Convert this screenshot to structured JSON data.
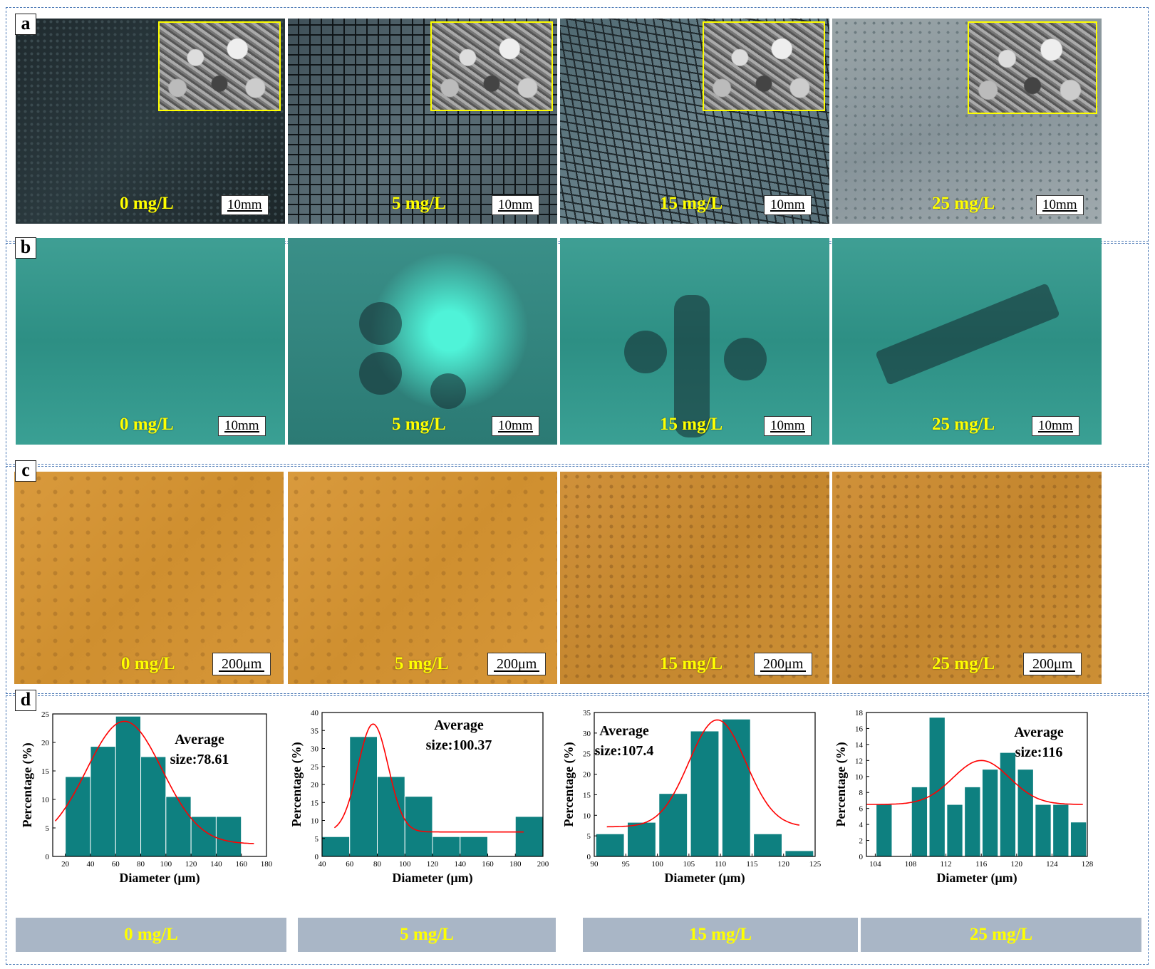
{
  "panels": {
    "a": "a",
    "b": "b",
    "c": "c",
    "d": "d"
  },
  "row_a": [
    {
      "label": "0 mg/L",
      "scale": "10mm"
    },
    {
      "label": "5 mg/L",
      "scale": "10mm"
    },
    {
      "label": "15 mg/L",
      "scale": "10mm"
    },
    {
      "label": "25 mg/L",
      "scale": "10mm"
    }
  ],
  "row_b": [
    {
      "label": "0 mg/L",
      "scale": "10mm"
    },
    {
      "label": "5 mg/L",
      "scale": "10mm"
    },
    {
      "label": "15 mg/L",
      "scale": "10mm"
    },
    {
      "label": "25 mg/L",
      "scale": "10mm"
    }
  ],
  "row_c": [
    {
      "label": "0 mg/L",
      "scale": "200μm"
    },
    {
      "label": "5 mg/L",
      "scale": "200μm"
    },
    {
      "label": "15 mg/L",
      "scale": "200μm"
    },
    {
      "label": "25 mg/L",
      "scale": "200μm"
    }
  ],
  "footer": [
    "0 mg/L",
    "5 mg/L",
    "15 mg/L",
    "25 mg/L"
  ],
  "colors": {
    "bar": "#0e8080",
    "fit": "#ff0000",
    "label": "#ffff00",
    "footer_bg": "#a9b6c6"
  },
  "chart_data": [
    {
      "type": "bar",
      "xlabel": "Diameter (μm)",
      "ylabel": "Percentage (%)",
      "annotation": [
        "Average",
        "size:78.61"
      ],
      "xlim": [
        10,
        180
      ],
      "ylim": [
        0,
        25
      ],
      "xticks": [
        20,
        40,
        60,
        80,
        100,
        120,
        140,
        160,
        180
      ],
      "yticks": [
        0,
        5,
        10,
        15,
        20,
        25
      ],
      "bar_width": 20,
      "x": [
        30,
        50,
        70,
        90,
        110,
        130,
        150
      ],
      "values": [
        14.0,
        19.3,
        24.6,
        17.5,
        10.5,
        7.0,
        7.0
      ],
      "fit": {
        "type": "gaussian",
        "center": 67,
        "sigma": 30,
        "amplitude": 21.5,
        "offset": 2.2,
        "x_range": [
          12,
          170
        ]
      }
    },
    {
      "type": "bar",
      "xlabel": "Diameter (μm)",
      "ylabel": "Percentage (%)",
      "annotation": [
        "Average",
        "size:100.37"
      ],
      "xlim": [
        40,
        200
      ],
      "ylim": [
        0,
        40
      ],
      "xticks": [
        40,
        60,
        80,
        100,
        120,
        140,
        160,
        180,
        200
      ],
      "yticks": [
        0,
        5,
        10,
        15,
        20,
        25,
        30,
        35,
        40
      ],
      "bar_width": 20,
      "x": [
        50,
        70,
        90,
        110,
        130,
        150,
        190
      ],
      "values": [
        5.5,
        33.3,
        22.2,
        16.7,
        5.5,
        5.5,
        11.1
      ],
      "fit": {
        "type": "gaussian",
        "center": 77,
        "sigma": 11,
        "amplitude": 30,
        "offset": 6.8,
        "x_range": [
          49,
          186
        ]
      }
    },
    {
      "type": "bar",
      "xlabel": "Diameter (μm)",
      "ylabel": "Percentage (%)",
      "annotation": [
        "Average",
        "size:107.4"
      ],
      "xlim": [
        90,
        125
      ],
      "ylim": [
        0,
        35
      ],
      "xticks": [
        90,
        95,
        100,
        105,
        110,
        115,
        120,
        125
      ],
      "yticks": [
        0,
        5,
        10,
        15,
        20,
        25,
        30,
        35
      ],
      "bar_width": 4.5,
      "x": [
        92.5,
        97.5,
        102.5,
        107.5,
        112.5,
        117.5,
        122.5
      ],
      "values": [
        5.5,
        8.3,
        15.3,
        30.5,
        33.4,
        5.5,
        1.4
      ],
      "fit": {
        "type": "gaussian",
        "center": 109.5,
        "sigma": 4.5,
        "amplitude": 26,
        "offset": 7.2,
        "x_range": [
          92,
          122.5
        ]
      }
    },
    {
      "type": "bar",
      "xlabel": "Diameter (μm)",
      "ylabel": "Percentage (%)",
      "annotation": [
        "Average",
        "size:116"
      ],
      "xlim": [
        103,
        128
      ],
      "ylim": [
        0,
        18
      ],
      "xticks": [
        104,
        108,
        112,
        116,
        120,
        124,
        128
      ],
      "yticks": [
        0,
        2,
        4,
        6,
        8,
        10,
        12,
        14,
        16,
        18
      ],
      "bar_width": 1.8,
      "x": [
        105,
        109,
        111,
        113,
        115,
        117,
        119,
        121,
        123,
        125,
        127
      ],
      "values": [
        6.5,
        8.7,
        17.4,
        6.5,
        8.7,
        10.9,
        13.0,
        10.9,
        6.5,
        6.5,
        4.3
      ],
      "fit": {
        "type": "gaussian",
        "center": 116,
        "sigma": 3.2,
        "amplitude": 5.5,
        "offset": 6.5,
        "x_range": [
          103,
          127.5
        ]
      }
    }
  ]
}
